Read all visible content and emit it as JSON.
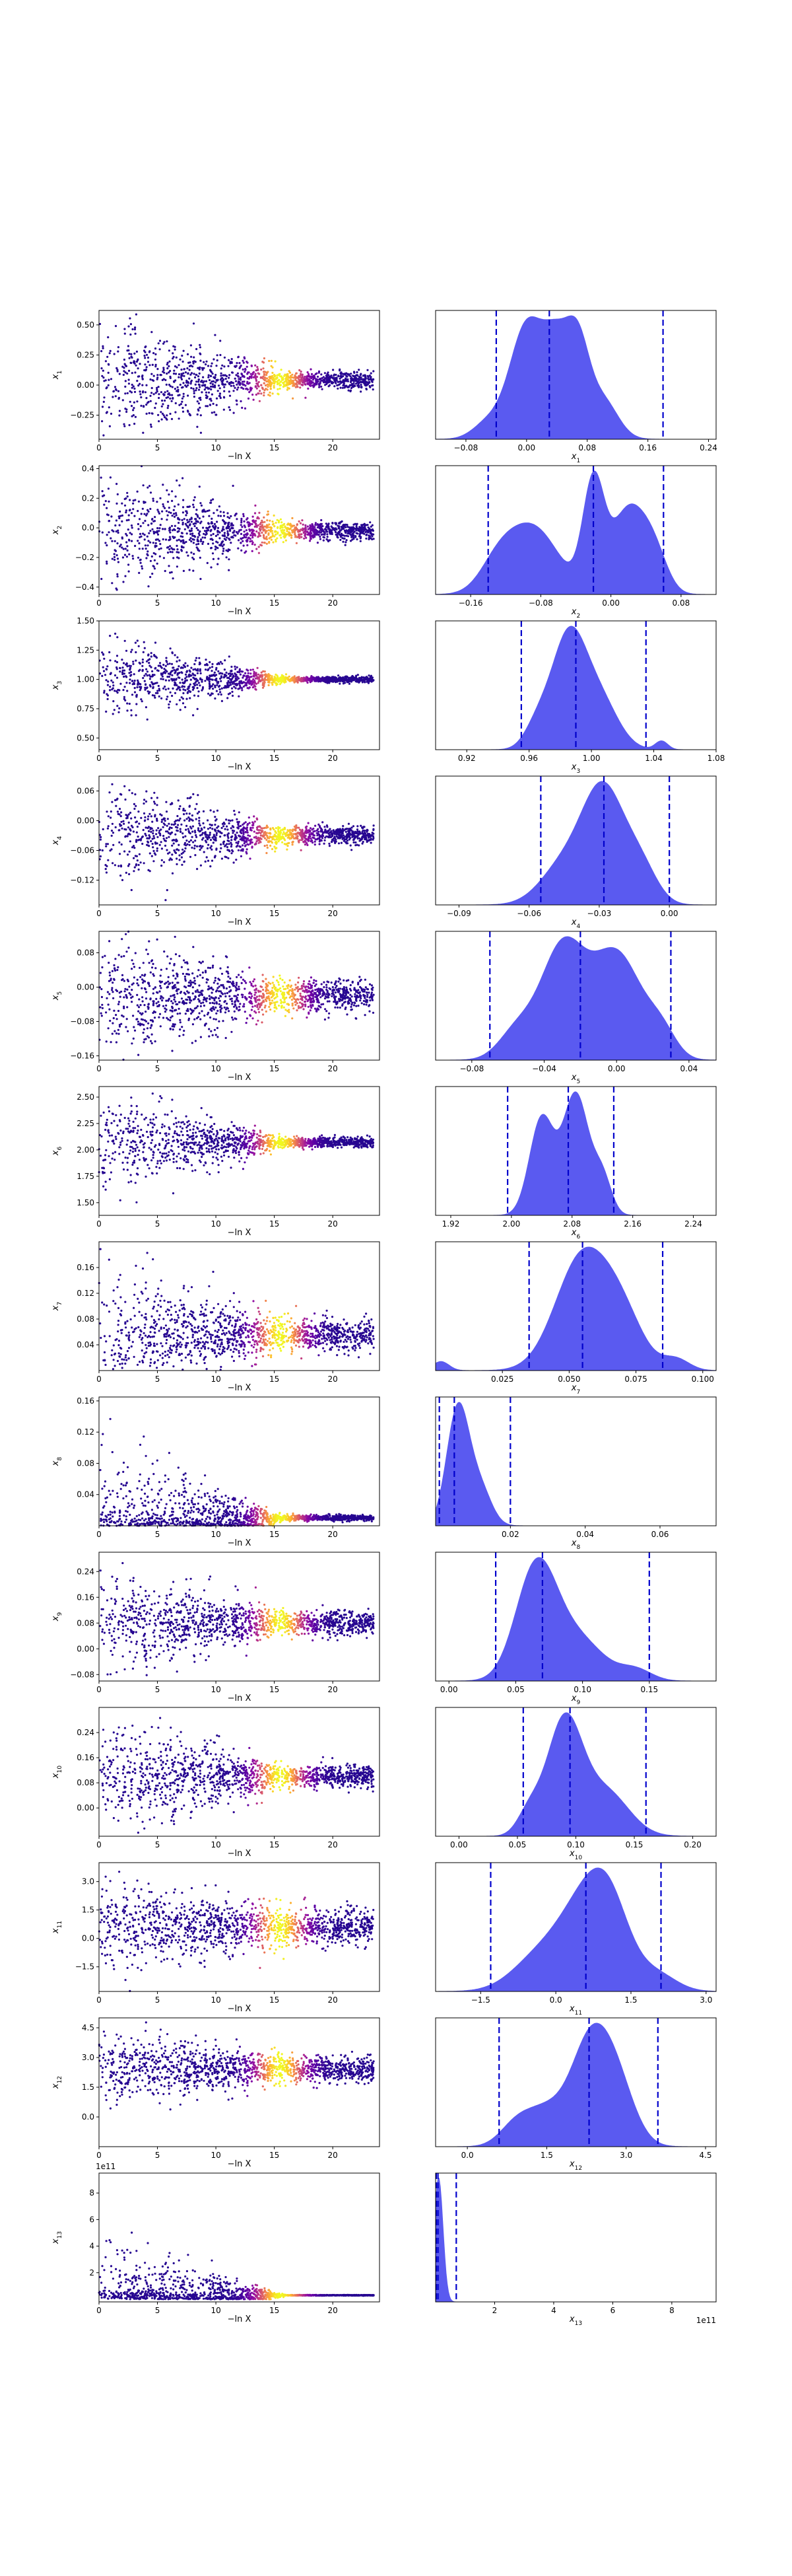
{
  "rows": [
    {
      "ylabel": "x1",
      "xlabel_left": "−ln X",
      "xlabel_right": "x1"
    },
    {
      "ylabel": "x2",
      "xlabel_left": "−ln X",
      "xlabel_right": "x2"
    },
    {
      "ylabel": "x3",
      "xlabel_left": "−ln X",
      "xlabel_right": "x3"
    },
    {
      "ylabel": "x4",
      "xlabel_left": "−ln X",
      "xlabel_right": "x4"
    },
    {
      "ylabel": "x5",
      "xlabel_left": "−ln X",
      "xlabel_right": "x5"
    },
    {
      "ylabel": "x6",
      "xlabel_left": "−ln X",
      "xlabel_right": "x6"
    },
    {
      "ylabel": "x7",
      "xlabel_left": "−ln X",
      "xlabel_right": "x7"
    },
    {
      "ylabel": "x8",
      "xlabel_left": "−ln X",
      "xlabel_right": "x8"
    },
    {
      "ylabel": "x9",
      "xlabel_left": "−ln X",
      "xlabel_right": "x9"
    },
    {
      "ylabel": "x10",
      "xlabel_left": "−ln X",
      "xlabel_right": "x10"
    },
    {
      "ylabel": "x11",
      "xlabel_left": "−ln X",
      "xlabel_right": "x11"
    },
    {
      "ylabel": "x12",
      "xlabel_left": "−ln X",
      "xlabel_right": "x12"
    },
    {
      "ylabel": "x13",
      "xlabel_left": "−ln X",
      "xlabel_right": "x13",
      "offset_label": "1e11"
    }
  ],
  "chart_data": [
    {
      "type": "scatter",
      "name": "trace-plots",
      "x_range": [
        0,
        24
      ],
      "x_ticks": [
        0,
        5,
        10,
        15,
        20
      ],
      "colormap": "plasma",
      "panels": [
        {
          "param": "x1",
          "ylim": [
            -0.45,
            0.62
          ],
          "y_ticks": [
            "−0.25",
            "0.00",
            "0.25",
            "0.50"
          ],
          "y_tick_values": [
            -0.25,
            0,
            0.25,
            0.5
          ],
          "center": 0.04,
          "spread_start": 0.45,
          "spread_end": 0.06
        },
        {
          "param": "x2",
          "ylim": [
            -0.45,
            0.42
          ],
          "y_ticks": [
            "−0.4",
            "−0.2",
            "0.0",
            "0.2",
            "0.4"
          ],
          "y_tick_values": [
            -0.4,
            -0.2,
            0,
            0.2,
            0.4
          ],
          "center": -0.02,
          "spread_start": 0.35,
          "spread_end": 0.05
        },
        {
          "param": "x3",
          "ylim": [
            0.4,
            1.5
          ],
          "y_ticks": [
            "0.50",
            "0.75",
            "1.00",
            "1.25",
            "1.50"
          ],
          "y_tick_values": [
            0.5,
            0.75,
            1.0,
            1.25,
            1.5
          ],
          "center": 1.0,
          "spread_start": 0.3,
          "spread_end": 0.02
        },
        {
          "param": "x4",
          "ylim": [
            -0.17,
            0.09
          ],
          "y_ticks": [
            "−0.12",
            "−0.06",
            "0.00",
            "0.06"
          ],
          "y_tick_values": [
            -0.12,
            -0.06,
            0,
            0.06
          ],
          "center": -0.03,
          "spread_start": 0.09,
          "spread_end": 0.015
        },
        {
          "param": "x5",
          "ylim": [
            -0.17,
            0.13
          ],
          "y_ticks": [
            "−0.16",
            "−0.08",
            "0.00",
            "0.08"
          ],
          "y_tick_values": [
            -0.16,
            -0.08,
            0,
            0.08
          ],
          "center": -0.02,
          "spread_start": 0.11,
          "spread_end": 0.03
        },
        {
          "param": "x6",
          "ylim": [
            1.38,
            2.6
          ],
          "y_ticks": [
            "1.50",
            "1.75",
            "2.00",
            "2.25",
            "2.50"
          ],
          "y_tick_values": [
            1.5,
            1.75,
            2.0,
            2.25,
            2.5
          ],
          "center": 2.07,
          "spread_start": 0.38,
          "spread_end": 0.04
        },
        {
          "param": "x7",
          "ylim": [
            0.0,
            0.2
          ],
          "y_ticks": [
            "0.04",
            "0.08",
            "0.12",
            "0.16"
          ],
          "y_tick_values": [
            0.04,
            0.08,
            0.12,
            0.16
          ],
          "center": 0.055,
          "spread_start": 0.08,
          "spread_end": 0.02
        },
        {
          "param": "x8",
          "ylim": [
            0.0,
            0.165
          ],
          "y_ticks": [
            "0.04",
            "0.08",
            "0.12",
            "0.16"
          ],
          "y_tick_values": [
            0.04,
            0.08,
            0.12,
            0.16
          ],
          "center": 0.01,
          "spread_start": 0.08,
          "spread_end": 0.003,
          "floor": 0
        },
        {
          "param": "x9",
          "ylim": [
            -0.1,
            0.3
          ],
          "y_ticks": [
            "−0.08",
            "0.00",
            "0.08",
            "0.16",
            "0.24"
          ],
          "y_tick_values": [
            -0.08,
            0,
            0.08,
            0.16,
            0.24
          ],
          "center": 0.08,
          "spread_start": 0.14,
          "spread_end": 0.03
        },
        {
          "param": "x10",
          "ylim": [
            -0.09,
            0.32
          ],
          "y_ticks": [
            "0.00",
            "0.08",
            "0.16",
            "0.24"
          ],
          "y_tick_values": [
            0,
            0.08,
            0.16,
            0.24
          ],
          "center": 0.1,
          "spread_start": 0.15,
          "spread_end": 0.03
        },
        {
          "param": "x11",
          "ylim": [
            -2.8,
            4.0
          ],
          "y_ticks": [
            "−1.5",
            "0.0",
            "1.5",
            "3.0"
          ],
          "y_tick_values": [
            -1.5,
            0,
            1.5,
            3.0
          ],
          "center": 0.6,
          "spread_start": 2.0,
          "spread_end": 0.8
        },
        {
          "param": "x12",
          "ylim": [
            -1.5,
            5.0
          ],
          "y_ticks": [
            "0.0",
            "1.5",
            "3.0",
            "4.5"
          ],
          "y_tick_values": [
            0,
            1.5,
            3.0,
            4.5
          ],
          "center": 2.4,
          "spread_start": 1.5,
          "spread_end": 0.6
        },
        {
          "param": "x13",
          "ylim": [
            -0.2,
            9.5
          ],
          "y_ticks": [
            "2",
            "4",
            "6",
            "8"
          ],
          "y_tick_values": [
            2,
            4,
            6,
            8
          ],
          "center": 0.3,
          "spread_start": 3.5,
          "spread_end": 0.02,
          "floor": 0,
          "offset_label": "1e11"
        }
      ]
    },
    {
      "type": "area",
      "name": "marginal-densities",
      "fill_color": "#5a5af0",
      "line_color": "#0000cc",
      "panels": [
        {
          "param": "x1",
          "xlim": [
            -0.12,
            0.25
          ],
          "x_ticks": [
            "−0.08",
            "0.00",
            "0.08",
            "0.16",
            "0.24"
          ],
          "x_tick_values": [
            -0.08,
            0,
            0.08,
            0.16,
            0.24
          ],
          "quantiles": [
            -0.04,
            0.03,
            0.18
          ],
          "components": [
            [
              0.0,
              0.022,
              1.0
            ],
            [
              0.04,
              0.018,
              0.75
            ],
            [
              0.068,
              0.015,
              0.72
            ],
            [
              0.1,
              0.02,
              0.35
            ],
            [
              -0.05,
              0.02,
              0.15
            ]
          ]
        },
        {
          "param": "x2",
          "xlim": [
            -0.2,
            0.12
          ],
          "x_ticks": [
            "−0.16",
            "−0.08",
            "0.00",
            "0.08"
          ],
          "x_tick_values": [
            -0.16,
            -0.08,
            0,
            0.08
          ],
          "quantiles": [
            -0.14,
            -0.02,
            0.06
          ],
          "components": [
            [
              -0.09,
              0.03,
              0.6
            ],
            [
              -0.02,
              0.012,
              0.95
            ],
            [
              0.02,
              0.02,
              0.75
            ],
            [
              -0.13,
              0.02,
              0.2
            ],
            [
              0.05,
              0.015,
              0.3
            ]
          ]
        },
        {
          "param": "x3",
          "xlim": [
            0.9,
            1.08
          ],
          "x_ticks": [
            "0.92",
            "0.96",
            "1.00",
            "1.04",
            "1.08"
          ],
          "x_tick_values": [
            0.92,
            0.96,
            1.0,
            1.04,
            1.08
          ],
          "quantiles": [
            0.955,
            0.99,
            1.035
          ],
          "components": [
            [
              0.985,
              0.011,
              1.0
            ],
            [
              1.005,
              0.012,
              0.45
            ],
            [
              0.965,
              0.008,
              0.2
            ],
            [
              1.045,
              0.004,
              0.08
            ]
          ]
        },
        {
          "param": "x4",
          "xlim": [
            -0.1,
            0.02
          ],
          "x_ticks": [
            "−0.09",
            "−0.06",
            "−0.03",
            "0.00"
          ],
          "x_tick_values": [
            -0.09,
            -0.06,
            -0.03,
            0.0
          ],
          "quantiles": [
            -0.055,
            -0.028,
            0.0
          ],
          "components": [
            [
              -0.028,
              0.009,
              1.0
            ],
            [
              -0.045,
              0.01,
              0.35
            ],
            [
              -0.012,
              0.007,
              0.3
            ]
          ]
        },
        {
          "param": "x5",
          "xlim": [
            -0.1,
            0.055
          ],
          "x_ticks": [
            "−0.08",
            "−0.04",
            "0.00",
            "0.04"
          ],
          "x_tick_values": [
            -0.08,
            -0.04,
            0.0,
            0.04
          ],
          "quantiles": [
            -0.07,
            -0.02,
            0.03
          ],
          "components": [
            [
              -0.03,
              0.012,
              0.95
            ],
            [
              0.0,
              0.014,
              0.92
            ],
            [
              -0.055,
              0.01,
              0.25
            ],
            [
              0.025,
              0.008,
              0.2
            ]
          ]
        },
        {
          "param": "x6",
          "xlim": [
            1.9,
            2.27
          ],
          "x_ticks": [
            "1.92",
            "2.00",
            "2.08",
            "2.16",
            "2.24"
          ],
          "x_tick_values": [
            1.92,
            2.0,
            2.08,
            2.16,
            2.24
          ],
          "quantiles": [
            1.995,
            2.075,
            2.135
          ],
          "components": [
            [
              2.085,
              0.017,
              1.0
            ],
            [
              2.04,
              0.016,
              0.8
            ],
            [
              2.12,
              0.012,
              0.3
            ]
          ]
        },
        {
          "param": "x7",
          "xlim": [
            0.0,
            0.105
          ],
          "x_ticks": [
            "0.025",
            "0.050",
            "0.075",
            "0.100"
          ],
          "x_tick_values": [
            0.025,
            0.05,
            0.075,
            0.1
          ],
          "quantiles": [
            0.035,
            0.055,
            0.085
          ],
          "components": [
            [
              0.055,
              0.01,
              1.0
            ],
            [
              0.07,
              0.008,
              0.4
            ],
            [
              0.002,
              0.003,
              0.08
            ],
            [
              0.09,
              0.005,
              0.1
            ]
          ]
        },
        {
          "param": "x8",
          "xlim": [
            0.0,
            0.075
          ],
          "x_ticks": [
            "0.02",
            "0.04",
            "0.06"
          ],
          "x_tick_values": [
            0.02,
            0.04,
            0.06
          ],
          "quantiles": [
            0.001,
            0.005,
            0.02
          ],
          "components": [
            [
              0.006,
              0.003,
              1.0
            ],
            [
              0.012,
              0.003,
              0.3
            ]
          ]
        },
        {
          "param": "x9",
          "xlim": [
            -0.01,
            0.2
          ],
          "x_ticks": [
            "0.00",
            "0.05",
            "0.10",
            "0.15"
          ],
          "x_tick_values": [
            0.0,
            0.05,
            0.1,
            0.15
          ],
          "quantiles": [
            0.035,
            0.07,
            0.15
          ],
          "components": [
            [
              0.065,
              0.015,
              1.0
            ],
            [
              0.095,
              0.02,
              0.4
            ],
            [
              0.14,
              0.012,
              0.1
            ]
          ]
        },
        {
          "param": "x10",
          "xlim": [
            -0.02,
            0.22
          ],
          "x_ticks": [
            "0.00",
            "0.05",
            "0.10",
            "0.15",
            "0.20"
          ],
          "x_tick_values": [
            0.0,
            0.05,
            0.1,
            0.15,
            0.2
          ],
          "quantiles": [
            0.055,
            0.095,
            0.16
          ],
          "components": [
            [
              0.09,
              0.015,
              1.0
            ],
            [
              0.125,
              0.02,
              0.4
            ],
            [
              0.06,
              0.01,
              0.2
            ]
          ]
        },
        {
          "param": "x11",
          "xlim": [
            -2.4,
            3.2
          ],
          "x_ticks": [
            "−1.5",
            "0.0",
            "1.5",
            "3.0"
          ],
          "x_tick_values": [
            -1.5,
            0,
            1.5,
            3.0
          ],
          "quantiles": [
            -1.3,
            0.6,
            2.1
          ],
          "components": [
            [
              0.6,
              0.5,
              0.9
            ],
            [
              1.1,
              0.4,
              0.7
            ],
            [
              -0.3,
              0.55,
              0.4
            ],
            [
              2.0,
              0.4,
              0.2
            ]
          ]
        },
        {
          "param": "x12",
          "xlim": [
            -0.6,
            4.7
          ],
          "x_ticks": [
            "0.0",
            "1.5",
            "3.0",
            "4.5"
          ],
          "x_tick_values": [
            0,
            1.5,
            3.0,
            4.5
          ],
          "quantiles": [
            0.6,
            2.3,
            3.6
          ],
          "components": [
            [
              2.3,
              0.35,
              1.0
            ],
            [
              2.8,
              0.35,
              0.7
            ],
            [
              1.5,
              0.4,
              0.4
            ],
            [
              0.9,
              0.3,
              0.2
            ]
          ]
        },
        {
          "param": "x13",
          "xlim": [
            0.0,
            9.5
          ],
          "x_ticks": [
            "2",
            "4",
            "6",
            "8"
          ],
          "x_tick_values": [
            2,
            4,
            6,
            8
          ],
          "quantiles": [
            0.02,
            0.08,
            0.7
          ],
          "offset_label": "1e11",
          "components": [
            [
              0.1,
              0.15,
              1.0
            ]
          ]
        }
      ]
    }
  ]
}
